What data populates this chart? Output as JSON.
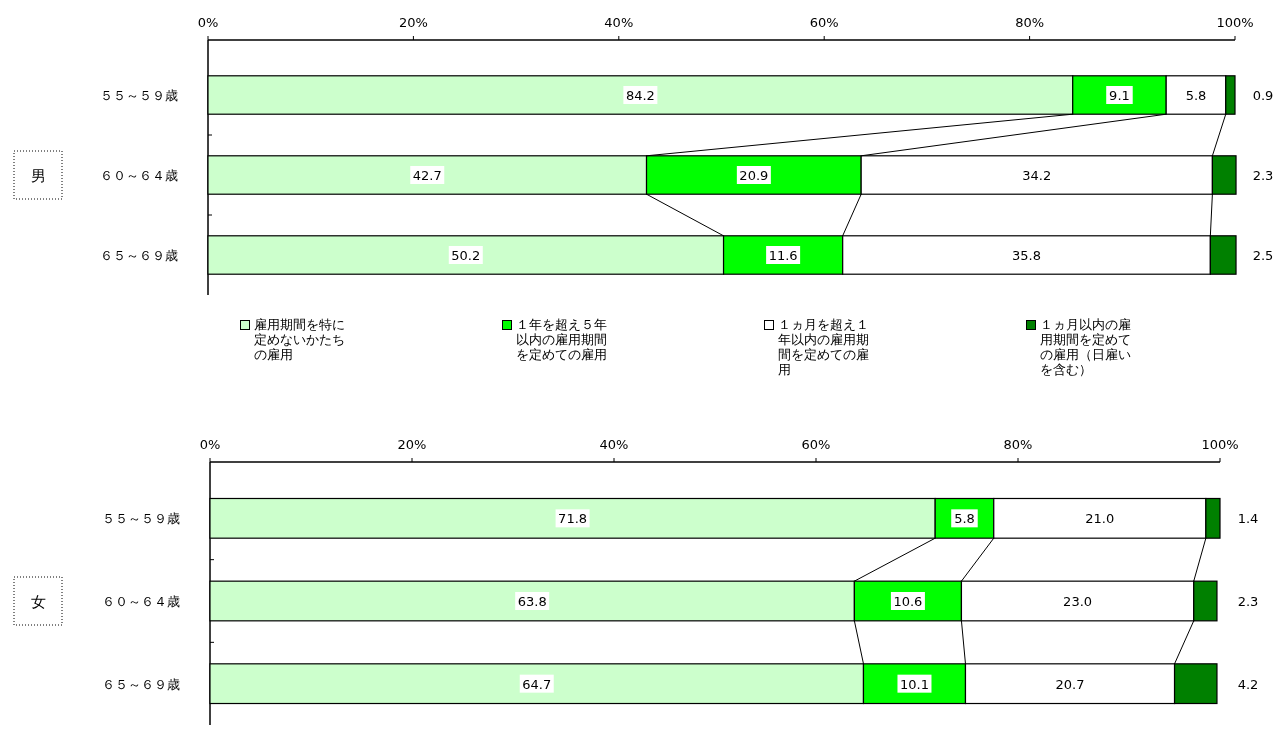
{
  "chart_data": [
    {
      "type": "bar",
      "orientation": "horizontal",
      "stacked": true,
      "ylabel": "男",
      "categories": [
        "５５～５９歳",
        "６０～６４歳",
        "６５～６９歳"
      ],
      "xlim": [
        0,
        100
      ],
      "xticks": [
        {
          "value": 0,
          "label": "0%"
        },
        {
          "value": 20,
          "label": "20%"
        },
        {
          "value": 40,
          "label": "40%"
        },
        {
          "value": 60,
          "label": "60%"
        },
        {
          "value": 80,
          "label": "80%"
        },
        {
          "value": 100,
          "label": "100%"
        }
      ],
      "legend": "bottom",
      "series": [
        {
          "name": "雇用期間を特に定めないかたちの雇用",
          "color": "#ccffcc",
          "values": [
            84.2,
            42.7,
            50.2
          ],
          "value_labels": [
            "84.2",
            "42.7",
            "50.2"
          ]
        },
        {
          "name": "１年を超え５年以内の雇用期間を定めての雇用",
          "color": "#00ff00",
          "values": [
            9.1,
            20.9,
            11.6
          ],
          "value_labels": [
            "9.1",
            "20.9",
            "11.6"
          ]
        },
        {
          "name": "１ヵ月を超え１年以内の雇用期間を定めての雇用",
          "color": "#ffffff",
          "values": [
            5.8,
            34.2,
            35.8
          ],
          "value_labels": [
            "5.8",
            "34.2",
            "35.8"
          ]
        },
        {
          "name": "１ヵ月以内の雇用期間を定めての雇用（日雇いを含む）",
          "color": "#008000",
          "values": [
            0.9,
            2.3,
            2.5
          ],
          "value_labels": [
            "0.9",
            "2.3",
            "2.5"
          ]
        }
      ]
    },
    {
      "type": "bar",
      "orientation": "horizontal",
      "stacked": true,
      "ylabel": "女",
      "categories": [
        "５５～５９歳",
        "６０～６４歳",
        "６５～６９歳"
      ],
      "xlim": [
        0,
        100
      ],
      "xticks": [
        {
          "value": 0,
          "label": "0%"
        },
        {
          "value": 20,
          "label": "20%"
        },
        {
          "value": 40,
          "label": "40%"
        },
        {
          "value": 60,
          "label": "60%"
        },
        {
          "value": 80,
          "label": "80%"
        },
        {
          "value": 100,
          "label": "100%"
        }
      ],
      "series": [
        {
          "color": "#ccffcc",
          "values": [
            71.8,
            63.8,
            64.7
          ],
          "value_labels": [
            "71.8",
            "63.8",
            "64.7"
          ]
        },
        {
          "color": "#00ff00",
          "values": [
            5.8,
            10.6,
            10.1
          ],
          "value_labels": [
            "5.8",
            "10.6",
            "10.1"
          ]
        },
        {
          "color": "#ffffff",
          "values": [
            21.0,
            23.0,
            20.7
          ],
          "value_labels": [
            "21.0",
            "23.0",
            "20.7"
          ]
        },
        {
          "color": "#008000",
          "values": [
            1.4,
            2.3,
            4.2
          ],
          "value_labels": [
            "1.4",
            "2.3",
            "4.2"
          ]
        }
      ]
    }
  ]
}
